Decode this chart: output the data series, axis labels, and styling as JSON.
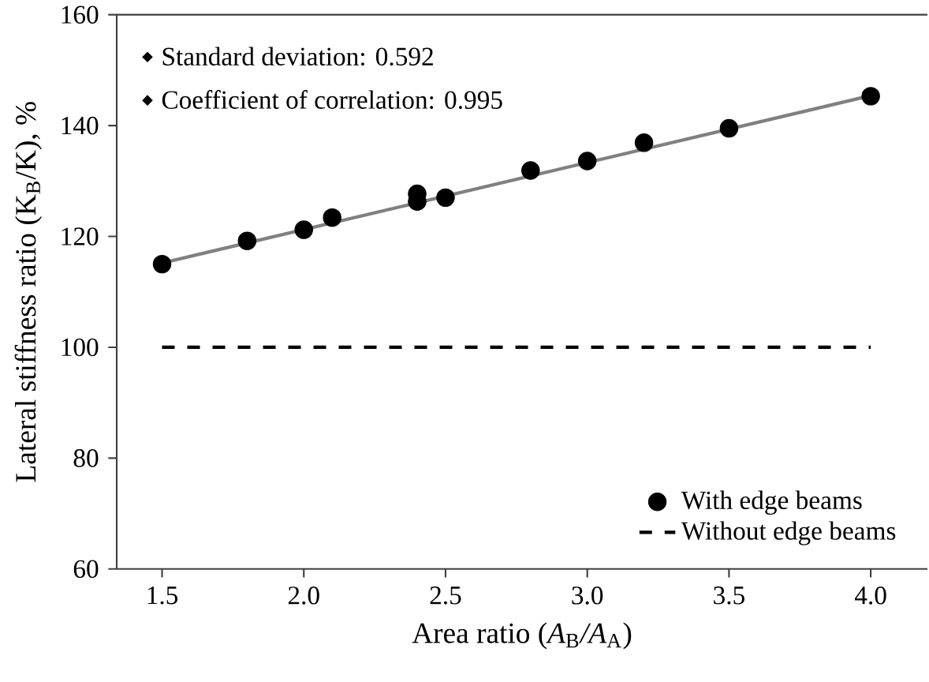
{
  "chart_data": {
    "type": "scatter",
    "xlabel": "Area ratio (*A*$_{B}$*/A*$_{A}$)",
    "ylabel": "Lateral stiffness ratio (K$_{B}$/K), %",
    "annotations": [
      "Standard deviation: 0.592",
      "Coefficient of correlation: 0.995"
    ],
    "xlim": [
      1.34,
      4.2
    ],
    "ylim": [
      60,
      160
    ],
    "xticks": [
      {
        "value": 1.5,
        "label": "1.5"
      },
      {
        "value": 2.0,
        "label": "2.0"
      },
      {
        "value": 2.5,
        "label": "2.5"
      },
      {
        "value": 3.0,
        "label": "3.0"
      },
      {
        "value": 3.5,
        "label": "3.5"
      },
      {
        "value": 4.0,
        "label": "4.0"
      }
    ],
    "yticks": [
      60,
      80,
      100,
      120,
      140,
      160
    ],
    "grid": false,
    "legend": "bottom right",
    "series": [
      {
        "name": "With edge beams",
        "type": "scatter",
        "color": "#000000",
        "x": [
          1.5,
          1.8,
          2.0,
          2.1,
          2.4,
          2.4,
          2.5,
          2.8,
          3.0,
          3.2,
          3.5,
          4.0
        ],
        "values": [
          115.0,
          119.2,
          121.2,
          123.4,
          127.7,
          126.3,
          127.0,
          131.9,
          133.6,
          136.9,
          139.5,
          145.3
        ]
      },
      {
        "type": "line",
        "color": "#808080",
        "line_style": "solid",
        "x": [
          1.5,
          4.0
        ],
        "values": [
          115.2,
          145.4
        ]
      },
      {
        "name": "Without edge beams",
        "type": "line",
        "color": "#000000",
        "line_style": "dashed",
        "x": [
          1.5,
          4.0
        ],
        "values": [
          100,
          100
        ]
      }
    ]
  }
}
